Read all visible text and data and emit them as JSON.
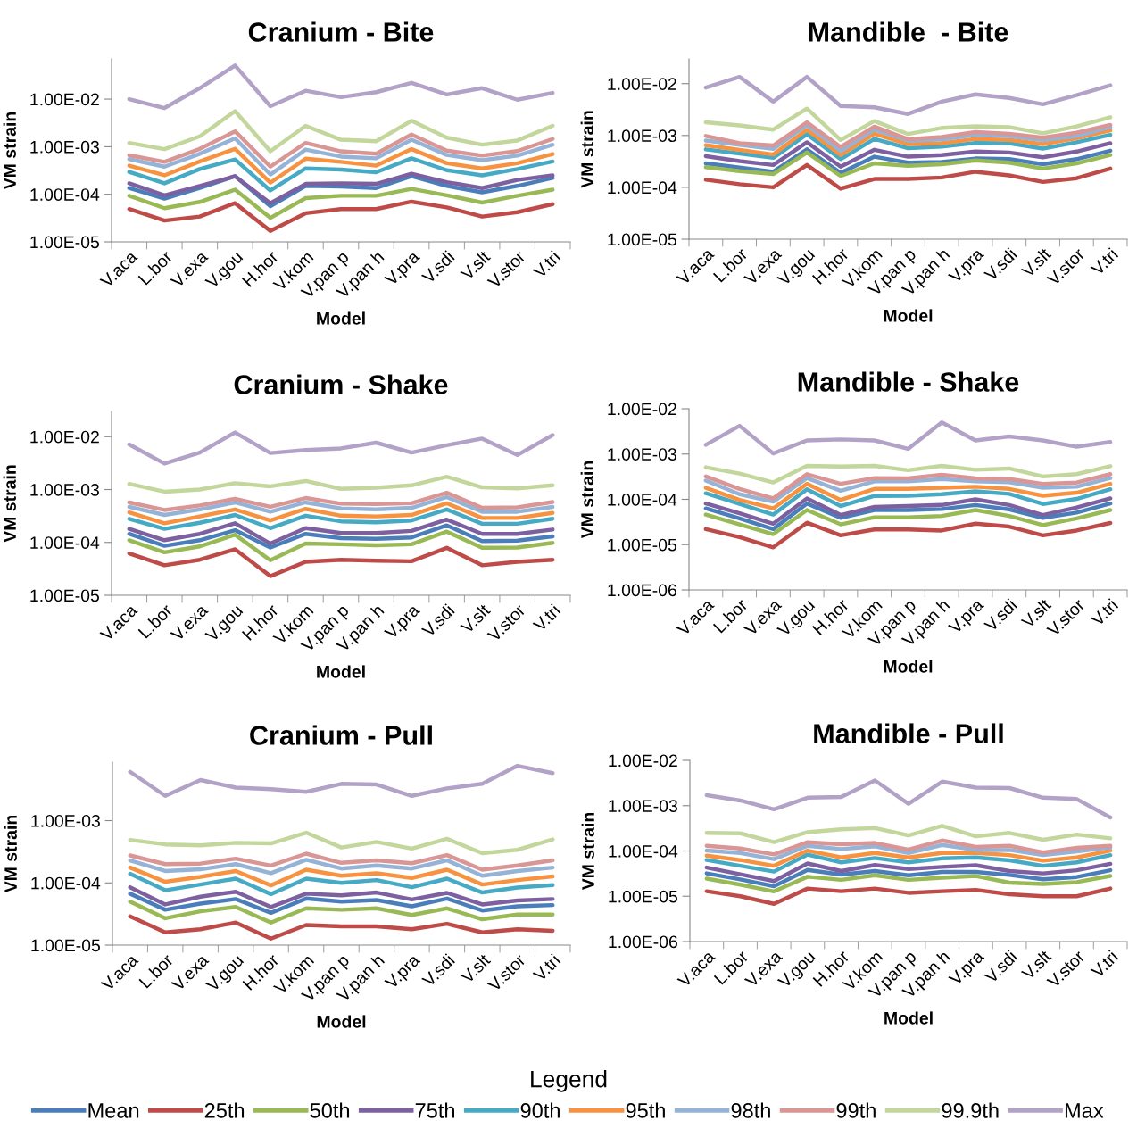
{
  "chart_data": [
    {
      "type": "line",
      "title": "Cranium - Bite",
      "xlabel": "Model",
      "ylabel": "VM strain",
      "log": "y",
      "grid": false,
      "marker": "none",
      "line_style": "solid",
      "legend": "bottom",
      "legend_title": "Legend",
      "categories": [
        "V.aca",
        "L.bor",
        "V.exa",
        "V.gou",
        "H.hor",
        "V.kom",
        "V.pan p",
        "V.pan h",
        "V.pra",
        "V.sdi",
        "V.slt",
        "V.stor",
        "V.tri"
      ],
      "ylim": [
        1e-05,
        0.07
      ],
      "yticks": [
        {
          "value": 1e-05,
          "label": "1.00E-05"
        },
        {
          "value": 0.0001,
          "label": "1.00E-04"
        },
        {
          "value": 0.001,
          "label": "1.00E-03"
        },
        {
          "value": 0.01,
          "label": "1.00E-02"
        }
      ],
      "series": [
        {
          "name": "Mean",
          "color": "#4a7ebb",
          "values": [
            0.000135,
            8.1e-05,
            0.000135,
            0.00024,
            5.6e-05,
            0.00015,
            0.000145,
            0.000135,
            0.00024,
            0.00015,
            0.00011,
            0.00015,
            0.00022
          ]
        },
        {
          "name": "25th",
          "color": "#be4b48",
          "values": [
            4.9e-05,
            2.8e-05,
            3.4e-05,
            6.5e-05,
            1.7e-05,
            4e-05,
            4.9e-05,
            4.9e-05,
            7e-05,
            5.3e-05,
            3.4e-05,
            4.2e-05,
            6.2e-05
          ]
        },
        {
          "name": "50th",
          "color": "#98b954",
          "values": [
            9.3e-05,
            5.1e-05,
            6.9e-05,
            0.000125,
            3.2e-05,
            8.3e-05,
            9.3e-05,
            9.3e-05,
            0.00013,
            9.5e-05,
            6.7e-05,
            9.3e-05,
            0.000125
          ]
        },
        {
          "name": "75th",
          "color": "#7d60a0",
          "values": [
            0.00017,
            9.5e-05,
            0.00015,
            0.00024,
            6.5e-05,
            0.000165,
            0.00017,
            0.000165,
            0.00027,
            0.00018,
            0.000135,
            0.0002,
            0.00025
          ]
        },
        {
          "name": "90th",
          "color": "#46aac5",
          "values": [
            0.000295,
            0.00017,
            0.00034,
            0.00054,
            0.00012,
            0.00035,
            0.00033,
            0.00029,
            0.00057,
            0.00032,
            0.00025,
            0.00034,
            0.00049
          ]
        },
        {
          "name": "95th",
          "color": "#f69240",
          "values": [
            0.0004,
            0.00025,
            0.00049,
            0.0009,
            0.000175,
            0.00056,
            0.00048,
            0.0004,
            0.00089,
            0.00045,
            0.00035,
            0.00045,
            0.0007
          ]
        },
        {
          "name": "98th",
          "color": "#95b3d7",
          "values": [
            0.00055,
            0.00038,
            0.00071,
            0.0015,
            0.00026,
            0.00087,
            0.00062,
            0.00057,
            0.0014,
            0.00067,
            0.00052,
            0.00065,
            0.0011
          ]
        },
        {
          "name": "99th",
          "color": "#d99694",
          "values": [
            0.00066,
            0.00048,
            0.0009,
            0.0021,
            0.00038,
            0.0012,
            0.0008,
            0.00071,
            0.0018,
            0.00083,
            0.00065,
            0.00081,
            0.00145
          ]
        },
        {
          "name": "99.9th",
          "color": "#c3d69b",
          "values": [
            0.0012,
            0.00089,
            0.00165,
            0.0056,
            0.0008,
            0.00275,
            0.0014,
            0.0013,
            0.0035,
            0.00155,
            0.0011,
            0.00135,
            0.00275
          ]
        },
        {
          "name": "Max",
          "color": "#b3a2c7",
          "values": [
            0.01,
            0.0065,
            0.017,
            0.051,
            0.0071,
            0.015,
            0.011,
            0.014,
            0.022,
            0.0125,
            0.017,
            0.0097,
            0.0135
          ]
        }
      ]
    },
    {
      "type": "line",
      "title": "Mandible  - Bite",
      "xlabel": "Model",
      "ylabel": "VM strain",
      "log": "y",
      "grid": false,
      "marker": "none",
      "line_style": "solid",
      "categories": [
        "V.aca",
        "L.bor",
        "V.exa",
        "V.gou",
        "H.hor",
        "V.kom",
        "V.pan p",
        "V.pan h",
        "V.pra",
        "V.sdi",
        "V.slt",
        "V.stor",
        "V.tri"
      ],
      "ylim": [
        1e-05,
        0.03
      ],
      "yticks": [
        {
          "value": 1e-05,
          "label": "1.00E-05"
        },
        {
          "value": 0.0001,
          "label": "1.00E-04"
        },
        {
          "value": 0.001,
          "label": "1.00E-03"
        },
        {
          "value": 0.01,
          "label": "1.00E-02"
        }
      ],
      "series": [
        {
          "color": "#4a7ebb",
          "values": [
            0.00029,
            0.00024,
            0.0002,
            0.00054,
            0.00019,
            0.00039,
            0.0003,
            0.00031,
            0.00036,
            0.00035,
            0.00028,
            0.00035,
            0.00051
          ]
        },
        {
          "color": "#be4b48",
          "values": [
            0.00014,
            0.000115,
            0.0001,
            0.00027,
            9.4e-05,
            0.000145,
            0.000145,
            0.000155,
            0.0002,
            0.00017,
            0.000127,
            0.00015,
            0.00023
          ]
        },
        {
          "color": "#98b954",
          "values": [
            0.000245,
            0.000205,
            0.00018,
            0.00047,
            0.000165,
            0.00029,
            0.00026,
            0.00028,
            0.00033,
            0.0003,
            0.00023,
            0.00029,
            0.00042
          ]
        },
        {
          "color": "#7d60a0",
          "values": [
            0.0004,
            0.00032,
            0.00027,
            0.00074,
            0.00025,
            0.00053,
            0.00039,
            0.00042,
            0.00049,
            0.00047,
            0.00038,
            0.00049,
            0.00071
          ]
        },
        {
          "color": "#46aac5",
          "values": [
            0.00054,
            0.00045,
            0.00037,
            0.00106,
            0.00035,
            0.00086,
            0.00057,
            0.00061,
            0.00072,
            0.00071,
            0.00056,
            0.00074,
            0.00103
          ]
        },
        {
          "color": "#f69240",
          "values": [
            0.00065,
            0.00053,
            0.00043,
            0.0013,
            0.00042,
            0.00108,
            0.00068,
            0.00071,
            0.00086,
            0.00082,
            0.00068,
            0.00089,
            0.00125
          ]
        },
        {
          "color": "#95b3d7",
          "values": [
            0.0008,
            0.00066,
            0.00055,
            0.0016,
            0.0005,
            0.0013,
            0.00079,
            0.00084,
            0.00103,
            0.00097,
            0.00081,
            0.00097,
            0.00145
          ]
        },
        {
          "color": "#d99694",
          "values": [
            0.00098,
            0.00071,
            0.00064,
            0.0018,
            0.0006,
            0.00148,
            0.00085,
            0.00094,
            0.00116,
            0.00108,
            0.00091,
            0.00113,
            0.0016
          ]
        },
        {
          "color": "#c3d69b",
          "values": [
            0.0018,
            0.00157,
            0.0013,
            0.0033,
            0.00082,
            0.0019,
            0.00107,
            0.0014,
            0.0015,
            0.00145,
            0.0011,
            0.0015,
            0.00225
          ]
        },
        {
          "color": "#b3a2c7",
          "values": [
            0.0084,
            0.0135,
            0.0045,
            0.0135,
            0.0037,
            0.0035,
            0.0026,
            0.0045,
            0.0062,
            0.0053,
            0.004,
            0.006,
            0.0093
          ]
        }
      ]
    },
    {
      "type": "line",
      "title": "Cranium - Shake",
      "xlabel": "Model",
      "ylabel": "VM strain",
      "log": "y",
      "grid": false,
      "marker": "none",
      "line_style": "solid",
      "categories": [
        "V.aca",
        "L.bor",
        "V.exa",
        "V.gou",
        "H.hor",
        "V.kom",
        "V.pan p",
        "V.pan h",
        "V.pra",
        "V.sdi",
        "V.slt",
        "V.stor",
        "V.tri"
      ],
      "ylim": [
        1e-05,
        0.03
      ],
      "yticks": [
        {
          "value": 1e-05,
          "label": "1.00E-05"
        },
        {
          "value": 0.0001,
          "label": "1.00E-04"
        },
        {
          "value": 0.001,
          "label": "1.00E-03"
        },
        {
          "value": 0.01,
          "label": "1.00E-02"
        }
      ],
      "series": [
        {
          "color": "#4a7ebb",
          "values": [
            0.000145,
            8.6e-05,
            0.00011,
            0.00017,
            8e-05,
            0.000145,
            0.00012,
            0.000117,
            0.000124,
            0.00021,
            0.000106,
            0.000108,
            0.00013
          ]
        },
        {
          "color": "#be4b48",
          "values": [
            6.2e-05,
            3.7e-05,
            4.7e-05,
            7.4e-05,
            2.3e-05,
            4.3e-05,
            4.7e-05,
            4.5e-05,
            4.4e-05,
            7.9e-05,
            3.7e-05,
            4.3e-05,
            4.7e-05
          ]
        },
        {
          "color": "#98b954",
          "values": [
            0.00011,
            6.5e-05,
            8.4e-05,
            0.00014,
            4.6e-05,
            9.5e-05,
            9.2e-05,
            8.8e-05,
            9.2e-05,
            0.00016,
            7.9e-05,
            8e-05,
            9.8e-05
          ]
        },
        {
          "color": "#7d60a0",
          "values": [
            0.00018,
            0.00011,
            0.000145,
            0.00023,
            9.5e-05,
            0.000186,
            0.00015,
            0.00015,
            0.000165,
            0.00027,
            0.000145,
            0.000145,
            0.000175
          ]
        },
        {
          "color": "#46aac5",
          "values": [
            0.00028,
            0.00018,
            0.000235,
            0.00033,
            0.000186,
            0.00032,
            0.00025,
            0.00024,
            0.00026,
            0.00042,
            0.000225,
            0.000225,
            0.00028
          ]
        },
        {
          "color": "#f69240",
          "values": [
            0.00037,
            0.00023,
            0.00031,
            0.00042,
            0.00026,
            0.00043,
            0.00032,
            0.00031,
            0.00033,
            0.00055,
            0.00029,
            0.00029,
            0.00036
          ]
        },
        {
          "color": "#95b3d7",
          "values": [
            0.00047,
            0.00033,
            0.00042,
            0.00057,
            0.00038,
            0.00057,
            0.00044,
            0.00042,
            0.00045,
            0.00072,
            0.00038,
            0.00038,
            0.00047
          ]
        },
        {
          "color": "#d99694",
          "values": [
            0.00057,
            0.00041,
            0.0005,
            0.00067,
            0.00047,
            0.00069,
            0.00054,
            0.00053,
            0.00055,
            0.00087,
            0.00045,
            0.00046,
            0.00058
          ]
        },
        {
          "color": "#c3d69b",
          "values": [
            0.00128,
            0.00091,
            0.001,
            0.00132,
            0.00115,
            0.00145,
            0.00103,
            0.00108,
            0.0012,
            0.00175,
            0.0011,
            0.00105,
            0.0012
          ]
        },
        {
          "color": "#b3a2c7",
          "values": [
            0.0071,
            0.0031,
            0.005,
            0.012,
            0.0049,
            0.0056,
            0.006,
            0.0077,
            0.005,
            0.0069,
            0.0092,
            0.0045,
            0.0107
          ]
        }
      ]
    },
    {
      "type": "line",
      "title": "Mandible - Shake",
      "xlabel": "Model",
      "ylabel": "VM strain",
      "log": "y",
      "grid": false,
      "marker": "none",
      "line_style": "solid",
      "categories": [
        "V.aca",
        "L.bor",
        "V.exa",
        "V.gou",
        "H.hor",
        "V.kom",
        "V.pan p",
        "V.pan h",
        "V.pra",
        "V.sdi",
        "V.slt",
        "V.stor",
        "V.tri"
      ],
      "ylim": [
        1e-06,
        0.01
      ],
      "yticks": [
        {
          "value": 1e-06,
          "label": "1.00E-06"
        },
        {
          "value": 1e-05,
          "label": "1.00E-05"
        },
        {
          "value": 0.0001,
          "label": "1.00E-04"
        },
        {
          "value": 0.001,
          "label": "1.00E-03"
        },
        {
          "value": 0.01,
          "label": "1.00E-02"
        }
      ],
      "series": [
        {
          "color": "#4a7ebb",
          "values": [
            6.3e-05,
            3.8e-05,
            2.2e-05,
            8.1e-05,
            3.9e-05,
            5.8e-05,
            5.8e-05,
            6.1e-05,
            7.5e-05,
            6e-05,
            3.9e-05,
            5.1e-05,
            8.1e-05
          ]
        },
        {
          "color": "#be4b48",
          "values": [
            2.2e-05,
            1.46e-05,
            8.7e-06,
            3.05e-05,
            1.6e-05,
            2.16e-05,
            2.16e-05,
            2.05e-05,
            2.9e-05,
            2.5e-05,
            1.6e-05,
            2.05e-05,
            3e-05
          ]
        },
        {
          "color": "#98b954",
          "values": [
            4.6e-05,
            2.8e-05,
            1.7e-05,
            5.8e-05,
            2.8e-05,
            4e-05,
            4e-05,
            4.3e-05,
            5.8e-05,
            4.3e-05,
            2.7e-05,
            3.8e-05,
            5.8e-05
          ]
        },
        {
          "color": "#7d60a0",
          "values": [
            8.1e-05,
            4.9e-05,
            2.9e-05,
            0.000105,
            4.5e-05,
            6.8e-05,
            7.1e-05,
            7.5e-05,
            0.0001,
            7.5e-05,
            4.5e-05,
            6.6e-05,
            0.000105
          ]
        },
        {
          "color": "#46aac5",
          "values": [
            0.000136,
            7.9e-05,
            4.6e-05,
            0.000167,
            7.1e-05,
            0.000119,
            0.00012,
            0.00013,
            0.00015,
            0.000132,
            7.9e-05,
            0.000102,
            0.000167
          ]
        },
        {
          "color": "#f69240",
          "values": [
            0.00018,
            9.7e-05,
            6.3e-05,
            0.00022,
            9.7e-05,
            0.00017,
            0.00017,
            0.00018,
            0.00019,
            0.00017,
            0.00012,
            0.00014,
            0.00022
          ]
        },
        {
          "color": "#95b3d7",
          "values": [
            0.00026,
            0.00013,
            8.9e-05,
            0.000295,
            0.000155,
            0.00025,
            0.00025,
            0.00028,
            0.00025,
            0.00024,
            0.00018,
            0.00019,
            0.000295
          ]
        },
        {
          "color": "#d99694",
          "values": [
            0.00032,
            0.00017,
            0.000105,
            0.00036,
            0.00022,
            0.000295,
            0.00029,
            0.00035,
            0.00029,
            0.00028,
            0.00022,
            0.000235,
            0.00036
          ]
        },
        {
          "color": "#c3d69b",
          "values": [
            0.00051,
            0.00037,
            0.000236,
            0.00055,
            0.00053,
            0.00055,
            0.00044,
            0.00055,
            0.00045,
            0.00048,
            0.00032,
            0.00036,
            0.00054
          ]
        },
        {
          "color": "#b3a2c7",
          "values": [
            0.0016,
            0.0042,
            0.00103,
            0.002,
            0.0021,
            0.002,
            0.0013,
            0.005,
            0.002,
            0.00245,
            0.002,
            0.00145,
            0.00185
          ]
        }
      ]
    },
    {
      "type": "line",
      "title": "Cranium - Pull",
      "xlabel": "Model",
      "ylabel": "VM strain",
      "log": "y",
      "grid": false,
      "marker": "none",
      "line_style": "solid",
      "categories": [
        "V.aca",
        "L.bor",
        "V.exa",
        "V.gou",
        "H.hor",
        "V.kom",
        "V.pan p",
        "V.pan h",
        "V.pra",
        "V.sdi",
        "V.slt",
        "V.stor",
        "V.tri"
      ],
      "ylim": [
        1e-05,
        0.0087
      ],
      "yticks": [
        {
          "value": 1e-05,
          "label": "1.00E-05"
        },
        {
          "value": 0.0001,
          "label": "1.00E-04"
        },
        {
          "value": 0.001,
          "label": "1.00E-03"
        }
      ],
      "series": [
        {
          "color": "#4a7ebb",
          "values": [
            6.7e-05,
            3.7e-05,
            4.65e-05,
            5.5e-05,
            3.3e-05,
            5.6e-05,
            5e-05,
            5.3e-05,
            4.2e-05,
            5.6e-05,
            3.6e-05,
            4.2e-05,
            4.4e-05
          ]
        },
        {
          "color": "#be4b48",
          "values": [
            2.9e-05,
            1.6e-05,
            1.8e-05,
            2.3e-05,
            1.27e-05,
            2.1e-05,
            2e-05,
            2e-05,
            1.8e-05,
            2.2e-05,
            1.6e-05,
            1.8e-05,
            1.7e-05
          ]
        },
        {
          "color": "#98b954",
          "values": [
            5e-05,
            2.7e-05,
            3.5e-05,
            4.1e-05,
            2.3e-05,
            3.9e-05,
            3.7e-05,
            3.9e-05,
            3.05e-05,
            3.9e-05,
            2.6e-05,
            3.1e-05,
            3.1e-05
          ]
        },
        {
          "color": "#7d60a0",
          "values": [
            8.5e-05,
            4.5e-05,
            6e-05,
            7.2e-05,
            4.1e-05,
            6.7e-05,
            6.3e-05,
            7e-05,
            5.4e-05,
            6.9e-05,
            4.5e-05,
            5.2e-05,
            5.5e-05
          ]
        },
        {
          "color": "#46aac5",
          "values": [
            0.00014,
            7.6e-05,
            9.4e-05,
            0.000117,
            6.6e-05,
            0.000117,
            0.0001,
            0.000111,
            8.5e-05,
            0.000117,
            7e-05,
            8.4e-05,
            9.2e-05
          ]
        },
        {
          "color": "#f69240",
          "values": [
            0.000176,
            0.000104,
            0.000125,
            0.000155,
            9.1e-05,
            0.000163,
            0.00013,
            0.000143,
            0.00012,
            0.000163,
            9.4e-05,
            0.000111,
            0.000127
          ]
        },
        {
          "color": "#95b3d7",
          "values": [
            0.00023,
            0.000155,
            0.000165,
            0.0002,
            0.000143,
            0.000235,
            0.00017,
            0.00019,
            0.00017,
            0.00023,
            0.00013,
            0.000155,
            0.000176
          ]
        },
        {
          "color": "#d99694",
          "values": [
            0.000276,
            0.0002,
            0.000204,
            0.000245,
            0.00019,
            0.000295,
            0.00021,
            0.00023,
            0.000207,
            0.00028,
            0.000163,
            0.00019,
            0.00023
          ]
        },
        {
          "color": "#c3d69b",
          "values": [
            0.00049,
            0.000415,
            0.0004,
            0.00044,
            0.00043,
            0.00064,
            0.00037,
            0.000455,
            0.000355,
            0.00051,
            0.0003,
            0.00034,
            0.0005
          ]
        },
        {
          "color": "#b3a2c7",
          "values": [
            0.0061,
            0.0025,
            0.0045,
            0.0034,
            0.0032,
            0.0029,
            0.0039,
            0.0038,
            0.0025,
            0.0033,
            0.0039,
            0.0076,
            0.0058
          ]
        }
      ]
    },
    {
      "type": "line",
      "title": "Mandible - Pull",
      "xlabel": "Model",
      "ylabel": "VM strain",
      "log": "y",
      "grid": false,
      "marker": "none",
      "line_style": "solid",
      "categories": [
        "V.aca",
        "L.bor",
        "V.exa",
        "V.gou",
        "H.hor",
        "V.kom",
        "V.pan p",
        "V.pan h",
        "V.pra",
        "V.sdi",
        "V.slt",
        "V.stor",
        "V.tri"
      ],
      "ylim": [
        1e-06,
        0.01
      ],
      "yticks": [
        {
          "value": 1e-06,
          "label": "1.00E-06"
        },
        {
          "value": 1e-05,
          "label": "1.00E-05"
        },
        {
          "value": 0.0001,
          "label": "1.00E-04"
        },
        {
          "value": 0.001,
          "label": "1.00E-03"
        },
        {
          "value": 0.01,
          "label": "1.00E-02"
        }
      ],
      "series": [
        {
          "color": "#4a7ebb",
          "values": [
            3.2e-05,
            2.36e-05,
            1.67e-05,
            3.8e-05,
            3e-05,
            3.6e-05,
            2.9e-05,
            3.45e-05,
            3.45e-05,
            2.95e-05,
            2.36e-05,
            2.66e-05,
            3.75e-05
          ]
        },
        {
          "color": "#be4b48",
          "values": [
            1.29e-05,
            1e-05,
            6.8e-06,
            1.48e-05,
            1.29e-05,
            1.48e-05,
            1.19e-05,
            1.29e-05,
            1.38e-05,
            1.11e-05,
            1e-05,
            1e-05,
            1.48e-05
          ]
        },
        {
          "color": "#98b954",
          "values": [
            2.45e-05,
            1.8e-05,
            1.28e-05,
            2.7e-05,
            2.3e-05,
            2.9e-05,
            2.3e-05,
            2.57e-05,
            2.8e-05,
            2e-05,
            1.86e-05,
            2.05e-05,
            2.8e-05
          ]
        },
        {
          "color": "#7d60a0",
          "values": [
            4.3e-05,
            3.05e-05,
            2.16e-05,
            5.3e-05,
            3.6e-05,
            4.9e-05,
            4e-05,
            4.45e-05,
            4.85e-05,
            3.6e-05,
            3.2e-05,
            3.75e-05,
            5.2e-05
          ]
        },
        {
          "color": "#46aac5",
          "values": [
            6.3e-05,
            4.7e-05,
            3.5e-05,
            8.3e-05,
            5.6e-05,
            7e-05,
            5.6e-05,
            6.85e-05,
            7.2e-05,
            6.2e-05,
            4.7e-05,
            5.6e-05,
            8.1e-05
          ]
        },
        {
          "color": "#f69240",
          "values": [
            7.9e-05,
            6.3e-05,
            4.7e-05,
            0.000102,
            7.2e-05,
            9e-05,
            7.2e-05,
            9e-05,
            9e-05,
            8.1e-05,
            6.1e-05,
            7.2e-05,
            0.000102
          ]
        },
        {
          "color": "#95b3d7",
          "values": [
            0.000102,
            9e-05,
            6.6e-05,
            0.00013,
            0.00011,
            0.000127,
            9e-05,
            0.000136,
            0.000105,
            0.000105,
            8.1e-05,
            9.8e-05,
            0.000119
          ]
        },
        {
          "color": "#d99694",
          "values": [
            0.00013,
            0.000113,
            8.4e-05,
            0.000156,
            0.00014,
            0.00015,
            0.000107,
            0.00017,
            0.000123,
            0.00013,
            9.3e-05,
            0.000117,
            0.00013
          ]
        },
        {
          "color": "#c3d69b",
          "values": [
            0.00025,
            0.000245,
            0.000156,
            0.00026,
            0.0003,
            0.00032,
            0.00022,
            0.00036,
            0.00021,
            0.00025,
            0.000176,
            0.00023,
            0.00019
          ]
        },
        {
          "color": "#b3a2c7",
          "values": [
            0.0017,
            0.0013,
            0.00083,
            0.0015,
            0.00155,
            0.0036,
            0.0011,
            0.0034,
            0.0025,
            0.00245,
            0.0015,
            0.0014,
            0.00055
          ]
        }
      ]
    }
  ]
}
